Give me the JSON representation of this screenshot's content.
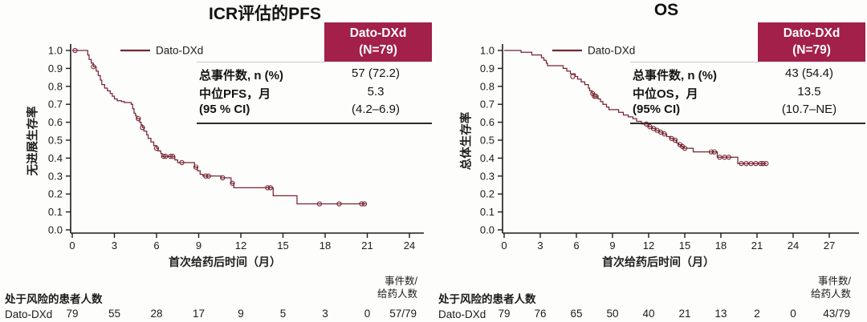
{
  "colors": {
    "accent": "#a2204a",
    "curve": "#772531",
    "ink": "#1c1c1c"
  },
  "chart_data": [
    {
      "type": "line",
      "subtype": "kaplan-meier",
      "title": "ICR评估的PFS",
      "ylabel": "无进展生存率",
      "xlabel": "首次给药后时间（月）",
      "xlim": [
        0,
        25.2
      ],
      "ylim": [
        0.0,
        1.0
      ],
      "xticks": [
        0,
        3,
        6,
        9,
        12,
        15,
        18,
        21,
        24
      ],
      "yticks": [
        "0.0",
        "0.1",
        "0.2",
        "0.3",
        "0.4",
        "0.5",
        "0.6",
        "0.7",
        "0.8",
        "0.9",
        "1.0"
      ],
      "legend": {
        "position": "top-left-inside",
        "label": "Dato-DXd"
      },
      "series": {
        "name": "Dato-DXd",
        "color": "#772531",
        "steps": [
          [
            0,
            1.0
          ],
          [
            1.0,
            1.0
          ],
          [
            1.1,
            0.975
          ],
          [
            1.2,
            0.95
          ],
          [
            1.35,
            0.93
          ],
          [
            1.5,
            0.91
          ],
          [
            1.7,
            0.885
          ],
          [
            1.85,
            0.86
          ],
          [
            2.0,
            0.835
          ],
          [
            2.1,
            0.81
          ],
          [
            2.3,
            0.79
          ],
          [
            2.5,
            0.775
          ],
          [
            2.7,
            0.76
          ],
          [
            2.85,
            0.745
          ],
          [
            3.0,
            0.73
          ],
          [
            3.2,
            0.72
          ],
          [
            3.5,
            0.715
          ],
          [
            3.7,
            0.71
          ],
          [
            4.2,
            0.7
          ],
          [
            4.3,
            0.675
          ],
          [
            4.4,
            0.65
          ],
          [
            4.5,
            0.635
          ],
          [
            4.6,
            0.62
          ],
          [
            4.8,
            0.6
          ],
          [
            4.9,
            0.585
          ],
          [
            5.0,
            0.57
          ],
          [
            5.1,
            0.55
          ],
          [
            5.3,
            0.53
          ],
          [
            5.4,
            0.51
          ],
          [
            5.6,
            0.49
          ],
          [
            5.8,
            0.47
          ],
          [
            6.0,
            0.455
          ],
          [
            6.1,
            0.44
          ],
          [
            6.3,
            0.425
          ],
          [
            6.4,
            0.41
          ],
          [
            7.2,
            0.41
          ],
          [
            7.3,
            0.39
          ],
          [
            7.5,
            0.375
          ],
          [
            8.6,
            0.375
          ],
          [
            8.7,
            0.35
          ],
          [
            8.9,
            0.33
          ],
          [
            9.1,
            0.31
          ],
          [
            9.3,
            0.3
          ],
          [
            10.5,
            0.3
          ],
          [
            10.6,
            0.29
          ],
          [
            11.2,
            0.29
          ],
          [
            11.3,
            0.26
          ],
          [
            11.5,
            0.235
          ],
          [
            14.2,
            0.235
          ],
          [
            14.3,
            0.19
          ],
          [
            15.9,
            0.19
          ],
          [
            16.0,
            0.145
          ],
          [
            20.9,
            0.145
          ]
        ],
        "censors": [
          [
            0.2,
            1.0
          ],
          [
            1.5,
            0.91
          ],
          [
            4.7,
            0.62
          ],
          [
            5.0,
            0.57
          ],
          [
            6.0,
            0.455
          ],
          [
            6.5,
            0.41
          ],
          [
            6.65,
            0.41
          ],
          [
            7.0,
            0.41
          ],
          [
            7.15,
            0.41
          ],
          [
            7.8,
            0.375
          ],
          [
            8.8,
            0.35
          ],
          [
            9.5,
            0.3
          ],
          [
            9.7,
            0.3
          ],
          [
            10.7,
            0.29
          ],
          [
            11.4,
            0.26
          ],
          [
            13.9,
            0.235
          ],
          [
            14.1,
            0.235
          ],
          [
            17.6,
            0.145
          ],
          [
            19.0,
            0.145
          ],
          [
            20.6,
            0.145
          ],
          [
            20.8,
            0.145
          ]
        ]
      },
      "stats": {
        "header": [
          "Dato-DXd",
          "(N=79)"
        ],
        "rows": [
          {
            "label": "总事件数, n (%)",
            "value": "57 (72.2)"
          },
          {
            "label": "中位PFS，月",
            "value": "5.3"
          },
          {
            "label": "(95 % CI)",
            "value": "(4.2–6.9)"
          }
        ]
      },
      "at_risk": {
        "title": "处于风险的患者人数",
        "right_header": [
          "事件数/",
          "给药人数"
        ],
        "counts": [
          79,
          55,
          28,
          17,
          9,
          5,
          3,
          0
        ],
        "ratio": "57/79"
      }
    },
    {
      "type": "line",
      "subtype": "kaplan-meier",
      "title": "OS",
      "ylabel": "总体生存率",
      "xlabel": "首次给药后时间（月）",
      "xlim": [
        0,
        29.5
      ],
      "ylim": [
        0.0,
        1.0
      ],
      "xticks": [
        0,
        3,
        6,
        9,
        12,
        15,
        18,
        21,
        24,
        27
      ],
      "yticks": [
        "0.0",
        "0.1",
        "0.2",
        "0.3",
        "0.4",
        "0.5",
        "0.6",
        "0.7",
        "0.8",
        "0.9",
        "1.0"
      ],
      "legend": {
        "position": "top-left-inside",
        "label": "Dato-DXd"
      },
      "series": {
        "name": "Dato-DXd",
        "color": "#772531",
        "steps": [
          [
            0,
            1.0
          ],
          [
            1.3,
            1.0
          ],
          [
            1.4,
            0.99
          ],
          [
            2.2,
            0.99
          ],
          [
            2.3,
            0.975
          ],
          [
            3.0,
            0.975
          ],
          [
            3.1,
            0.96
          ],
          [
            3.3,
            0.945
          ],
          [
            3.5,
            0.93
          ],
          [
            3.6,
            0.915
          ],
          [
            4.8,
            0.915
          ],
          [
            4.9,
            0.9
          ],
          [
            5.2,
            0.885
          ],
          [
            5.5,
            0.87
          ],
          [
            5.9,
            0.855
          ],
          [
            6.1,
            0.84
          ],
          [
            6.4,
            0.825
          ],
          [
            6.7,
            0.81
          ],
          [
            7.0,
            0.79
          ],
          [
            7.1,
            0.775
          ],
          [
            7.3,
            0.76
          ],
          [
            7.45,
            0.745
          ],
          [
            7.8,
            0.73
          ],
          [
            8.0,
            0.715
          ],
          [
            8.2,
            0.7
          ],
          [
            8.5,
            0.685
          ],
          [
            8.7,
            0.67
          ],
          [
            9.4,
            0.67
          ],
          [
            9.5,
            0.655
          ],
          [
            9.9,
            0.64
          ],
          [
            10.3,
            0.63
          ],
          [
            10.7,
            0.62
          ],
          [
            11.0,
            0.605
          ],
          [
            11.4,
            0.59
          ],
          [
            12.0,
            0.575
          ],
          [
            12.3,
            0.565
          ],
          [
            12.6,
            0.555
          ],
          [
            12.9,
            0.545
          ],
          [
            13.2,
            0.535
          ],
          [
            13.5,
            0.52
          ],
          [
            13.8,
            0.51
          ],
          [
            14.1,
            0.5
          ],
          [
            14.3,
            0.485
          ],
          [
            14.5,
            0.475
          ],
          [
            14.7,
            0.465
          ],
          [
            14.9,
            0.455
          ],
          [
            15.6,
            0.455
          ],
          [
            15.7,
            0.435
          ],
          [
            17.6,
            0.435
          ],
          [
            17.7,
            0.405
          ],
          [
            19.3,
            0.405
          ],
          [
            19.4,
            0.37
          ],
          [
            21.8,
            0.37
          ]
        ],
        "censors": [
          [
            5.7,
            0.855
          ],
          [
            7.35,
            0.76
          ],
          [
            7.5,
            0.745
          ],
          [
            7.62,
            0.745
          ],
          [
            11.8,
            0.59
          ],
          [
            12.1,
            0.575
          ],
          [
            12.4,
            0.565
          ],
          [
            12.7,
            0.555
          ],
          [
            13.0,
            0.545
          ],
          [
            13.3,
            0.535
          ],
          [
            13.9,
            0.51
          ],
          [
            14.2,
            0.5
          ],
          [
            14.6,
            0.475
          ],
          [
            14.8,
            0.465
          ],
          [
            15.0,
            0.455
          ],
          [
            17.2,
            0.435
          ],
          [
            17.45,
            0.435
          ],
          [
            17.9,
            0.405
          ],
          [
            18.3,
            0.405
          ],
          [
            18.65,
            0.405
          ],
          [
            19.7,
            0.37
          ],
          [
            20.1,
            0.37
          ],
          [
            20.5,
            0.37
          ],
          [
            20.9,
            0.37
          ],
          [
            21.3,
            0.37
          ],
          [
            21.5,
            0.37
          ],
          [
            21.75,
            0.37
          ]
        ]
      },
      "stats": {
        "header": [
          "Dato-DXd",
          "(N=79)"
        ],
        "rows": [
          {
            "label": "总事件数, n (%)",
            "value": "43 (54.4)"
          },
          {
            "label": "中位OS，月",
            "value": "13.5"
          },
          {
            "label": "(95% CI)",
            "value": "(10.7–NE)"
          }
        ]
      },
      "at_risk": {
        "title": "处于风险的患者人数",
        "right_header": [
          "事件数/",
          "给药人数"
        ],
        "counts": [
          79,
          76,
          65,
          50,
          40,
          21,
          13,
          2,
          0
        ],
        "ratio": "43/79"
      }
    }
  ]
}
